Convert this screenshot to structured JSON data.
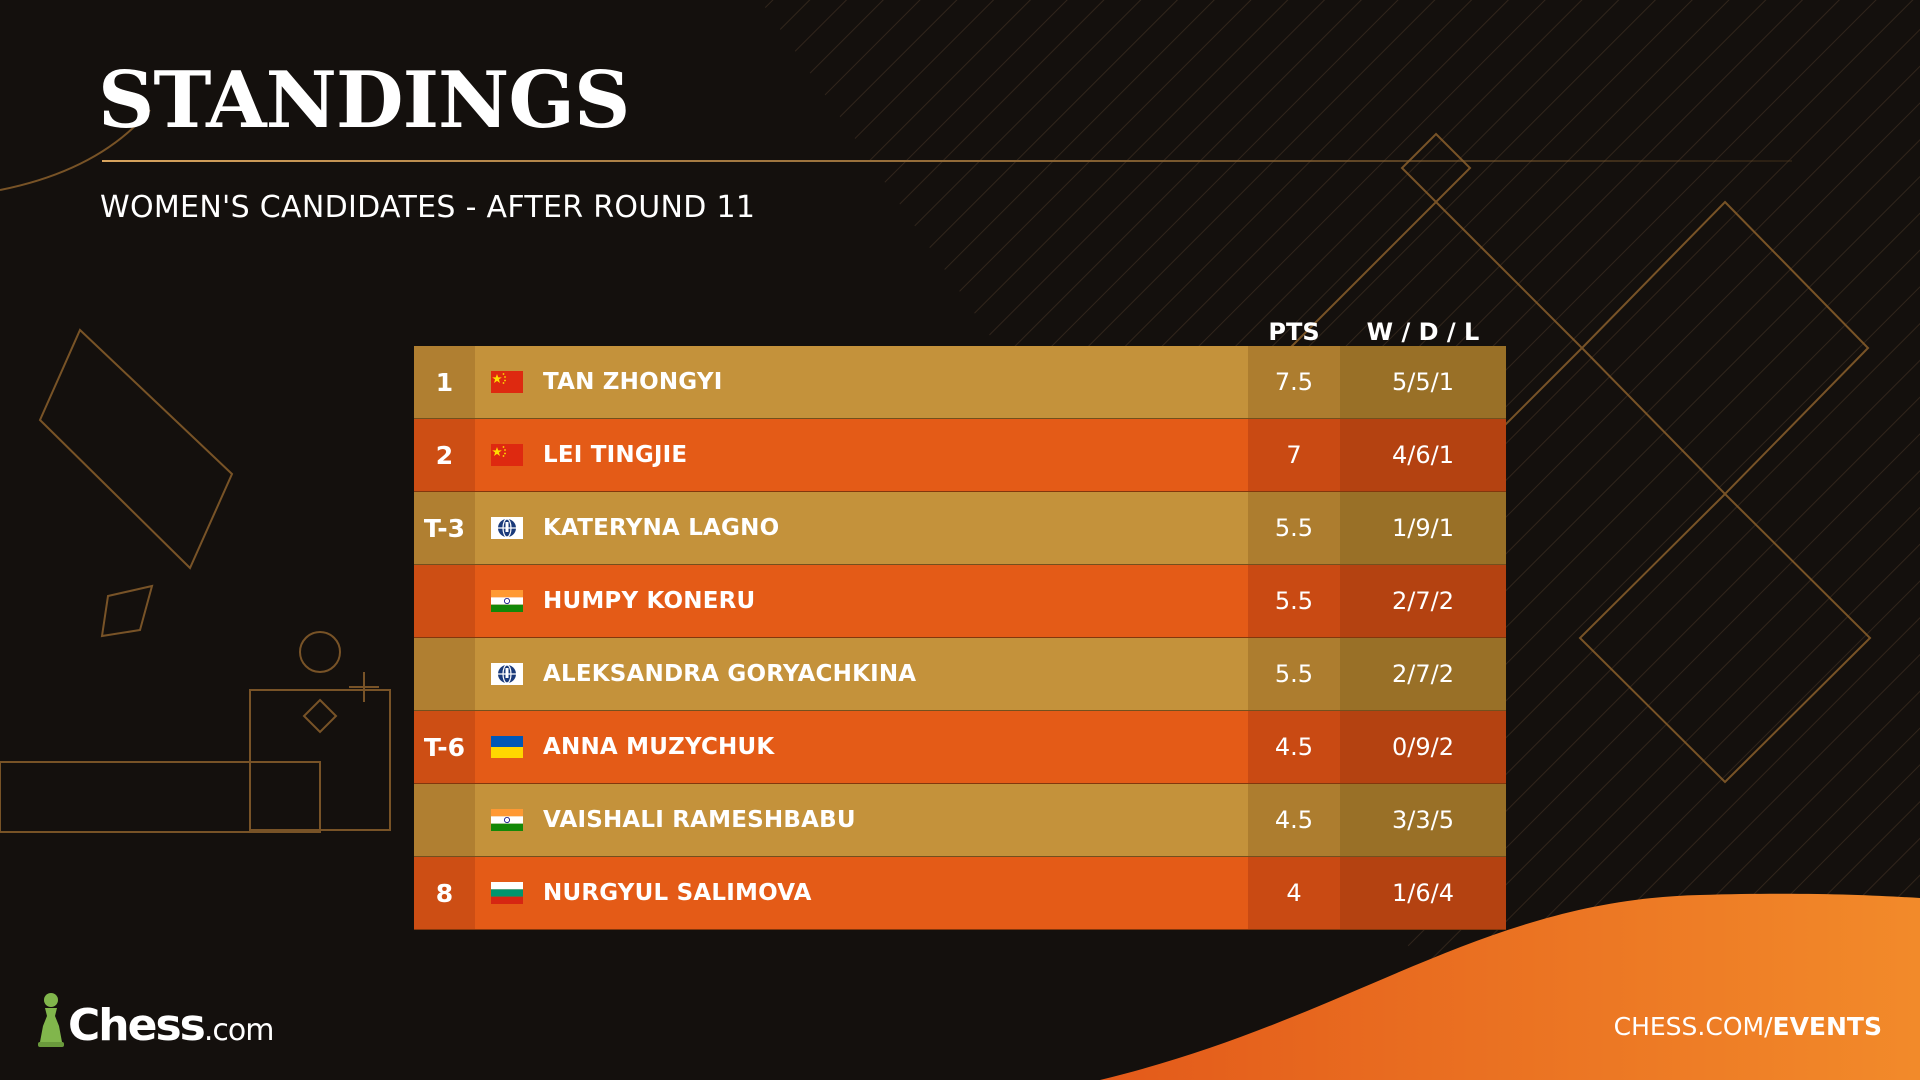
{
  "header": {
    "title": "STANDINGS",
    "subtitle": "WOMEN'S CANDIDATES - AFTER ROUND 11"
  },
  "table": {
    "columns": {
      "points": "PTS",
      "record": "W / D / L"
    },
    "rows": [
      {
        "rank": "1",
        "flag": "china",
        "name": "TAN ZHONGYI",
        "points": "7.5",
        "record": "5/5/1",
        "style": "gold"
      },
      {
        "rank": "2",
        "flag": "china",
        "name": "LEI TINGJIE",
        "points": "7",
        "record": "4/6/1",
        "style": "orange"
      },
      {
        "rank": "T-3",
        "flag": "fide",
        "name": "KATERYNA LAGNO",
        "points": "5.5",
        "record": "1/9/1",
        "style": "gold"
      },
      {
        "rank": "",
        "flag": "india",
        "name": "HUMPY KONERU",
        "points": "5.5",
        "record": "2/7/2",
        "style": "orange"
      },
      {
        "rank": "",
        "flag": "fide",
        "name": "ALEKSANDRA GORYACHKINA",
        "points": "5.5",
        "record": "2/7/2",
        "style": "gold"
      },
      {
        "rank": "T-6",
        "flag": "ukraine",
        "name": "ANNA MUZYCHUK",
        "points": "4.5",
        "record": "0/9/2",
        "style": "orange"
      },
      {
        "rank": "",
        "flag": "india",
        "name": "VAISHALI RAMESHBABU",
        "points": "4.5",
        "record": "3/3/5",
        "style": "gold"
      },
      {
        "rank": "8",
        "flag": "bulgaria",
        "name": "NURGYUL SALIMOVA",
        "points": "4",
        "record": "1/6/4",
        "style": "orange"
      }
    ]
  },
  "footer": {
    "logo_main": "Chess",
    "logo_suffix": ".com",
    "events_prefix": "CHESS.COM/",
    "events_bold": "EVENTS"
  },
  "colors": {
    "background": "#14100d",
    "gold_row": "#c4923b",
    "orange_row": "#e45b17",
    "accent_line": "#d8a45e",
    "logo_green": "#81b64c"
  }
}
